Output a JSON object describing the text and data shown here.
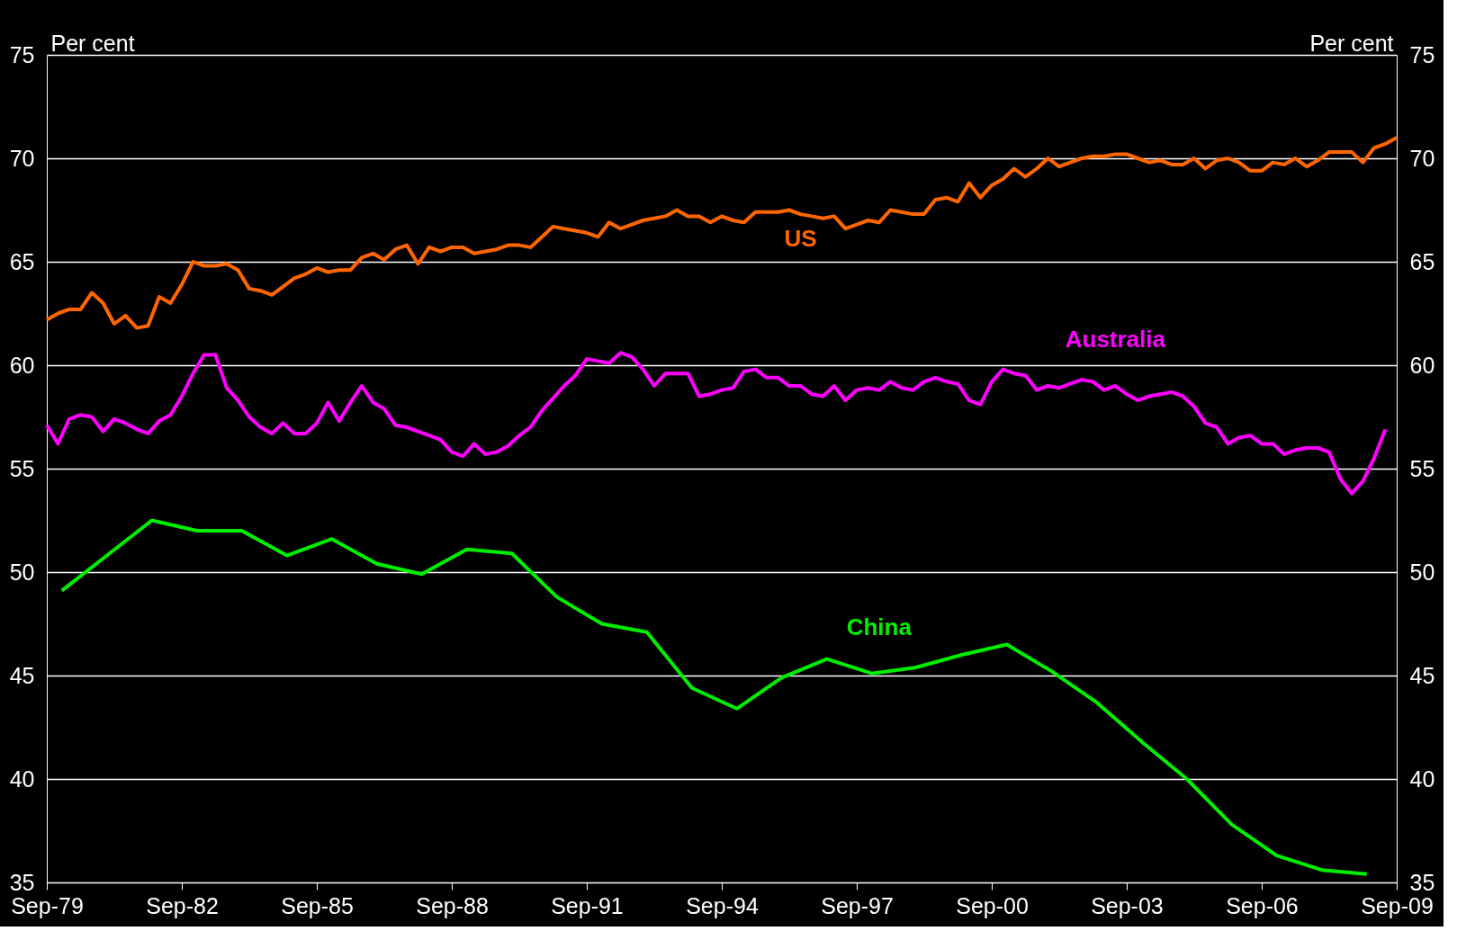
{
  "chart_data": {
    "type": "line",
    "ylabel": "Per cent",
    "y2label": "Per cent",
    "x": [
      "1979-09",
      "1979-12",
      "1980-03",
      "1980-06",
      "1980-09",
      "1980-12",
      "1981-03",
      "1981-06",
      "1981-09",
      "1981-12",
      "1982-03",
      "1982-06",
      "1982-09",
      "1982-12",
      "1983-03",
      "1983-06",
      "1983-09",
      "1983-12",
      "1984-03",
      "1984-06",
      "1984-09",
      "1984-12",
      "1985-03",
      "1985-06",
      "1985-09",
      "1985-12",
      "1986-03",
      "1986-06",
      "1986-09",
      "1986-12",
      "1987-03",
      "1987-06",
      "1987-09",
      "1987-12",
      "1988-03",
      "1988-06",
      "1988-09",
      "1988-12",
      "1989-03",
      "1989-06",
      "1989-09",
      "1989-12",
      "1990-03",
      "1990-06",
      "1990-09",
      "1990-12",
      "1991-03",
      "1991-06",
      "1991-09",
      "1991-12",
      "1992-03",
      "1992-06",
      "1992-09",
      "1992-12",
      "1993-03",
      "1993-06",
      "1993-09",
      "1993-12",
      "1994-03",
      "1994-06",
      "1994-09",
      "1994-12",
      "1995-03",
      "1995-06",
      "1995-09",
      "1995-12",
      "1996-03",
      "1996-06",
      "1996-09",
      "1996-12",
      "1997-03",
      "1997-06",
      "1997-09",
      "1997-12",
      "1998-03",
      "1998-06",
      "1998-09",
      "1998-12",
      "1999-03",
      "1999-06",
      "1999-09",
      "1999-12",
      "2000-03",
      "2000-06",
      "2000-09",
      "2000-12",
      "2001-03",
      "2001-06",
      "2001-09",
      "2001-12",
      "2002-03",
      "2002-06",
      "2002-09",
      "2002-12",
      "2003-03",
      "2003-06",
      "2003-09",
      "2003-12",
      "2004-03",
      "2004-06",
      "2004-09",
      "2004-12",
      "2005-03",
      "2005-06",
      "2005-09",
      "2005-12",
      "2006-03",
      "2006-06",
      "2006-09",
      "2006-12",
      "2007-03",
      "2007-06",
      "2007-09",
      "2007-12",
      "2008-03",
      "2008-06",
      "2008-09",
      "2008-12",
      "2009-03",
      "2009-06",
      "2009-09"
    ],
    "series": [
      {
        "name": "US",
        "color": "#ff6600",
        "values": [
          62.2,
          62.5,
          62.7,
          62.7,
          63.5,
          63.0,
          62.0,
          62.4,
          61.8,
          61.9,
          63.3,
          63.0,
          63.9,
          65.0,
          64.8,
          64.8,
          64.9,
          64.6,
          63.7,
          63.6,
          63.4,
          63.8,
          64.2,
          64.4,
          64.7,
          64.5,
          64.6,
          64.6,
          65.2,
          65.4,
          65.1,
          65.6,
          65.8,
          64.9,
          65.7,
          65.5,
          65.7,
          65.7,
          65.4,
          65.5,
          65.6,
          65.8,
          65.8,
          65.7,
          66.2,
          66.7,
          66.6,
          66.5,
          66.4,
          66.2,
          66.9,
          66.6,
          66.8,
          67.0,
          67.1,
          67.2,
          67.5,
          67.2,
          67.2,
          66.9,
          67.2,
          67.0,
          66.9,
          67.4,
          67.4,
          67.4,
          67.5,
          67.3,
          67.2,
          67.1,
          67.2,
          66.6,
          66.8,
          67.0,
          66.9,
          67.5,
          67.4,
          67.3,
          67.3,
          68.0,
          68.1,
          67.9,
          68.8,
          68.1,
          68.7,
          69.0,
          69.5,
          69.1,
          69.5,
          70.0,
          69.6,
          69.8,
          70.0,
          70.1,
          70.1,
          70.2,
          70.2,
          70.0,
          69.8,
          69.9,
          69.7,
          69.7,
          70.0,
          69.5,
          69.9,
          70.0,
          69.8,
          69.4,
          69.4,
          69.8,
          69.7,
          70.0,
          69.6,
          69.9,
          70.3,
          70.3,
          70.3,
          69.8,
          70.5,
          70.7,
          71.0
        ]
      },
      {
        "name": "Australia",
        "color": "#ff00ff",
        "values": [
          57.1,
          56.2,
          57.4,
          57.6,
          57.5,
          56.8,
          57.4,
          57.2,
          56.9,
          56.7,
          57.3,
          57.6,
          58.5,
          59.6,
          60.5,
          60.5,
          58.9,
          58.3,
          57.5,
          57.0,
          56.7,
          57.2,
          56.7,
          56.7,
          57.2,
          58.2,
          57.3,
          58.2,
          59.0,
          58.2,
          57.9,
          57.1,
          57.0,
          56.8,
          56.6,
          56.4,
          55.8,
          55.6,
          56.2,
          55.7,
          55.8,
          56.1,
          56.6,
          57.0,
          57.8,
          58.4,
          59.0,
          59.5,
          60.3,
          60.2,
          60.1,
          60.6,
          60.4,
          59.8,
          59.0,
          59.6,
          59.6,
          59.6,
          58.5,
          58.6,
          58.8,
          58.9,
          59.7,
          59.8,
          59.4,
          59.4,
          59.0,
          59.0,
          58.6,
          58.5,
          59.0,
          58.3,
          58.8,
          58.9,
          58.8,
          59.2,
          58.9,
          58.8,
          59.2,
          59.4,
          59.2,
          59.1,
          58.3,
          58.1,
          59.2,
          59.8,
          59.6,
          59.5,
          58.8,
          59.0,
          58.9,
          59.1,
          59.3,
          59.2,
          58.8,
          59.0,
          58.6,
          58.3,
          58.5,
          58.6,
          58.7,
          58.5,
          58.0,
          57.2,
          57.0,
          56.2,
          56.5,
          56.6,
          56.2,
          56.2,
          55.7,
          55.9,
          56.0,
          56.0,
          55.8,
          54.5,
          53.8,
          54.4,
          55.5,
          56.9,
          null
        ]
      },
      {
        "name": "China",
        "color": "#00ee00",
        "x": [
          "1980",
          "1982",
          "1983",
          "1984",
          "1985",
          "1986",
          "1987",
          "1988",
          "1989",
          "1990",
          "1991",
          "1992",
          "1993",
          "1994",
          "1995",
          "1996",
          "1997",
          "1998",
          "1999",
          "2000",
          "2001",
          "2002",
          "2003",
          "2004",
          "2005",
          "2006",
          "2007",
          "2008",
          "2009"
        ],
        "values": [
          49.1,
          52.5,
          52.0,
          52.0,
          50.8,
          51.6,
          50.4,
          49.9,
          51.1,
          50.9,
          48.8,
          47.5,
          47.1,
          44.4,
          43.4,
          44.9,
          45.8,
          45.1,
          45.4,
          46.0,
          46.5,
          45.2,
          43.7,
          41.8,
          40.0,
          37.8,
          36.3,
          35.6,
          35.4
        ]
      }
    ],
    "xlim": [
      "1979-09",
      "2009-09"
    ],
    "xticks": [
      {
        "value": "1979-09",
        "label": "Sep-79"
      },
      {
        "value": "1982-09",
        "label": "Sep-82"
      },
      {
        "value": "1985-09",
        "label": "Sep-85"
      },
      {
        "value": "1988-09",
        "label": "Sep-88"
      },
      {
        "value": "1991-09",
        "label": "Sep-91"
      },
      {
        "value": "1994-09",
        "label": "Sep-94"
      },
      {
        "value": "1997-09",
        "label": "Sep-97"
      },
      {
        "value": "2000-09",
        "label": "Sep-00"
      },
      {
        "value": "2003-09",
        "label": "Sep-03"
      },
      {
        "value": "2006-09",
        "label": "Sep-06"
      },
      {
        "value": "2009-09",
        "label": "Sep-09"
      }
    ],
    "ylim": [
      35,
      75
    ],
    "yticks": [
      35,
      40,
      45,
      50,
      55,
      60,
      65,
      70,
      75
    ],
    "y2lim": [
      35,
      75
    ],
    "y2ticks": [
      35,
      40,
      45,
      50,
      55,
      60,
      65,
      70,
      75
    ],
    "grid": "y",
    "legend": false
  }
}
